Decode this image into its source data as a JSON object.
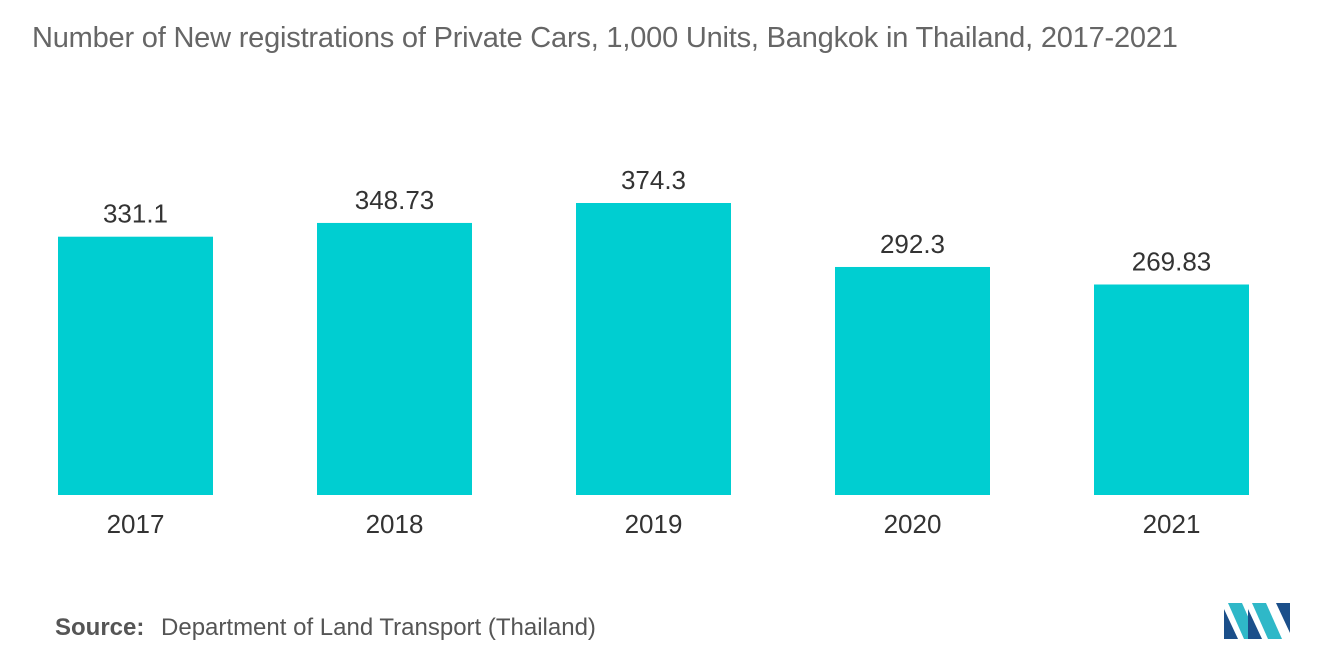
{
  "title": "Number of New registrations of Private Cars, 1,000 Units, Bangkok in Thailand, 2017-2021",
  "source": {
    "label": "Source:",
    "text": "Department of Land Transport (Thailand)"
  },
  "logo": {
    "icon": "mordor-intelligence-logo",
    "colors": [
      "#1b4f8a",
      "#2fb8c8"
    ]
  },
  "colors": {
    "bar": "#00CED1",
    "text": "#333333",
    "title": "#666666"
  },
  "chart_data": {
    "type": "bar",
    "title": "Number of New registrations of Private Cars, 1,000 Units, Bangkok in Thailand, 2017-2021",
    "categories": [
      "2017",
      "2018",
      "2019",
      "2020",
      "2021"
    ],
    "values": [
      331.1,
      348.73,
      374.3,
      292.3,
      269.83
    ],
    "value_labels": [
      "331.1",
      "348.73",
      "374.3",
      "292.3",
      "269.83"
    ],
    "xlabel": "",
    "ylabel": "",
    "ylim": [
      0,
      374.3
    ],
    "grid": false,
    "legend": "none"
  }
}
